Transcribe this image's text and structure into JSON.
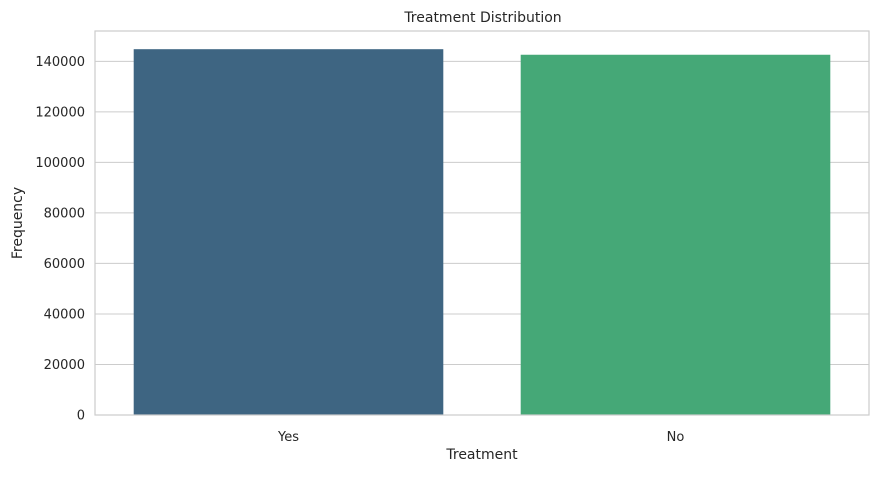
{
  "chart_data": {
    "type": "bar",
    "title": "Treatment Distribution",
    "xlabel": "Treatment",
    "ylabel": "Frequency",
    "categories": [
      "Yes",
      "No"
    ],
    "values": [
      144800,
      142600
    ],
    "ylim": [
      0,
      152000
    ],
    "yticks": [
      0,
      20000,
      40000,
      60000,
      80000,
      100000,
      120000,
      140000
    ],
    "ytick_labels": [
      "0",
      "20000",
      "40000",
      "60000",
      "80000",
      "100000",
      "120000",
      "140000"
    ],
    "colors": [
      "#3e6582",
      "#45a877"
    ],
    "grid": "y-axis horizontal",
    "legend": "none"
  }
}
